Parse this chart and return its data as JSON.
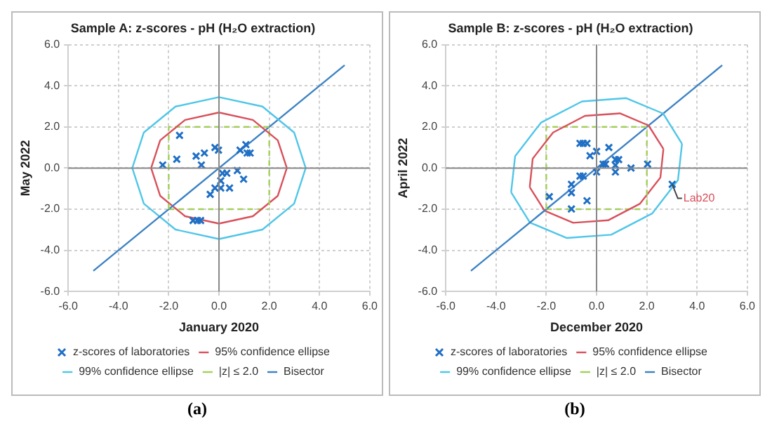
{
  "chart_data": [
    {
      "type": "scatter",
      "title": "Sample A: z-scores - pH (H₂O extraction)",
      "xlabel": "January 2020",
      "ylabel": "May 2022",
      "xlim": [
        -6,
        6
      ],
      "ylim": [
        -6,
        6
      ],
      "xticks": [
        {
          "value": -6,
          "label": "-6.0"
        },
        {
          "value": -4,
          "label": "-4.0"
        },
        {
          "value": -2,
          "label": "-2.0"
        },
        {
          "value": 0,
          "label": "0.0"
        },
        {
          "value": 2,
          "label": "2.0"
        },
        {
          "value": 4,
          "label": "4.0"
        },
        {
          "value": 6,
          "label": "6.0"
        }
      ],
      "yticks": [
        {
          "value": -6,
          "label": "-6.0"
        },
        {
          "value": -4,
          "label": "-4.0"
        },
        {
          "value": -2,
          "label": "-2.0"
        },
        {
          "value": 0,
          "label": "0.0"
        },
        {
          "value": 2,
          "label": "2.0"
        },
        {
          "value": 4,
          "label": "4.0"
        },
        {
          "value": 6,
          "label": "6.0"
        }
      ],
      "grid": true,
      "legend": "bottom",
      "annotations": [
        "(a)"
      ],
      "series": [
        {
          "name": "z-scores of laboratories",
          "type": "scatter",
          "marker": "cross",
          "color": "#1f6fc5",
          "x": [
            -2.24,
            -1.57,
            -1.68,
            -0.91,
            -0.58,
            -0.7,
            -0.16,
            -0.02,
            0.84,
            1.07,
            1.12,
            1.24,
            0.14,
            0.31,
            0.73,
            0.98,
            0.07,
            -0.16,
            0.07,
            0.42,
            -0.35,
            -1.03,
            -0.86,
            -0.73
          ],
          "values": [
            0.15,
            1.59,
            0.43,
            0.58,
            0.73,
            0.15,
            1.0,
            0.87,
            0.87,
            1.14,
            0.73,
            0.73,
            -0.25,
            -0.25,
            -0.12,
            -0.54,
            -0.62,
            -0.97,
            -0.97,
            -0.97,
            -1.28,
            -2.55,
            -2.55,
            -2.55
          ]
        },
        {
          "name": "95% confidence ellipse",
          "type": "line",
          "marker": "none",
          "color": "#d9505a",
          "x": [
            -2.7,
            -2.34,
            -1.35,
            0,
            1.35,
            2.34,
            2.7
          ],
          "values": [
            0,
            1.35,
            2.34,
            2.7,
            2.34,
            1.35,
            0
          ]
        },
        {
          "name": "99% confidence ellipse",
          "type": "line",
          "marker": "none",
          "color": "#4fc6e8",
          "x": [
            -3.45,
            -2.99,
            -1.73,
            0,
            1.73,
            2.99,
            3.45
          ],
          "values": [
            0,
            1.73,
            2.99,
            3.45,
            2.99,
            1.73,
            0
          ]
        },
        {
          "name": "|z| ≤ 2.0",
          "type": "line",
          "marker": "none",
          "line_style": "dashed",
          "color": "#a4d05a",
          "x": [
            -2,
            -2,
            2,
            2
          ],
          "values": [
            -2,
            2,
            2,
            -2
          ]
        },
        {
          "name": "Bisector",
          "type": "line",
          "marker": "none",
          "color": "#3b82c4",
          "x": [
            -5,
            5
          ],
          "values": [
            -5,
            5
          ]
        },
        {
          "type": "line",
          "marker": "none",
          "color": "#d9505a",
          "x": [
            -2.7,
            -2.34,
            -1.35,
            0,
            1.35,
            2.34,
            2.7
          ],
          "values": [
            0,
            -1.35,
            -2.34,
            -2.7,
            -2.34,
            -1.35,
            0
          ]
        },
        {
          "type": "line",
          "marker": "none",
          "color": "#4fc6e8",
          "x": [
            -3.45,
            -2.99,
            -1.73,
            0,
            1.73,
            2.99,
            3.45
          ],
          "values": [
            0,
            -1.73,
            -2.99,
            -3.45,
            -2.99,
            -1.73,
            0
          ]
        },
        {
          "type": "line",
          "marker": "none",
          "line_style": "dashed",
          "color": "#a4d05a",
          "x": [
            -2,
            2
          ],
          "values": [
            -2,
            -2
          ]
        }
      ]
    },
    {
      "type": "scatter",
      "title": "Sample B: z-scores - pH (H₂O extraction)",
      "xlabel": "December 2020",
      "ylabel": "April 2022",
      "xlim": [
        -6,
        6
      ],
      "ylim": [
        -6,
        6
      ],
      "xticks": [
        {
          "value": -6,
          "label": "-6.0"
        },
        {
          "value": -4,
          "label": "-4.0"
        },
        {
          "value": -2,
          "label": "-2.0"
        },
        {
          "value": 0,
          "label": "0.0"
        },
        {
          "value": 2,
          "label": "2.0"
        },
        {
          "value": 4,
          "label": "4.0"
        },
        {
          "value": 6,
          "label": "6.0"
        }
      ],
      "yticks": [
        {
          "value": -6,
          "label": "-6.0"
        },
        {
          "value": -4,
          "label": "-4.0"
        },
        {
          "value": -2,
          "label": "-2.0"
        },
        {
          "value": 0,
          "label": "0.0"
        },
        {
          "value": 2,
          "label": "2.0"
        },
        {
          "value": 4,
          "label": "4.0"
        },
        {
          "value": 6,
          "label": "6.0"
        }
      ],
      "grid": true,
      "legend": "bottom",
      "annotations": [
        "(b)",
        {
          "text": "Lab20",
          "x": 3.01,
          "y": -0.79
        }
      ],
      "series": [
        {
          "name": "z-scores of laboratories",
          "type": "scatter",
          "marker": "cross",
          "color": "#1f6fc5",
          "x": [
            -1.88,
            -1.0,
            -1.0,
            -1.0,
            -0.38,
            -0.66,
            -0.53,
            -0.38,
            -0.66,
            -0.53,
            -0.26,
            0,
            0.49,
            0,
            0.26,
            0.36,
            0.75,
            0.88,
            0.75,
            0.75,
            1.37,
            2.03,
            3.01
          ],
          "values": [
            -1.39,
            -0.79,
            -1.2,
            -1.99,
            -1.59,
            1.2,
            1.2,
            1.2,
            -0.39,
            -0.39,
            0.6,
            0.81,
            1.0,
            -0.19,
            0.19,
            0.19,
            0.41,
            0.41,
            0.14,
            -0.19,
            0,
            0.19,
            -0.79
          ]
        },
        {
          "name": "95% confidence ellipse",
          "type": "line",
          "marker": "none",
          "color": "#d9505a",
          "x": [
            -2.66,
            -2.54,
            -1.73,
            -0.46,
            0.93,
            2.07,
            2.66
          ],
          "values": [
            -0.93,
            0.46,
            1.73,
            2.54,
            2.66,
            2.07,
            0.93
          ]
        },
        {
          "name": "99% confidence ellipse",
          "type": "line",
          "marker": "none",
          "color": "#4fc6e8",
          "x": [
            -3.4,
            -3.24,
            -2.21,
            -0.58,
            1.18,
            2.65,
            3.4
          ],
          "values": [
            -1.18,
            0.58,
            2.21,
            3.24,
            3.4,
            2.65,
            1.18
          ]
        },
        {
          "name": "|z| ≤ 2.0",
          "type": "line",
          "marker": "none",
          "line_style": "dashed",
          "color": "#a4d05a",
          "x": [
            -2,
            -2,
            2,
            2
          ],
          "values": [
            -2,
            2,
            2,
            -2
          ]
        },
        {
          "name": "Bisector",
          "type": "line",
          "marker": "none",
          "color": "#3b82c4",
          "x": [
            -5,
            5
          ],
          "values": [
            -5,
            5
          ]
        },
        {
          "type": "line",
          "marker": "none",
          "color": "#d9505a",
          "x": [
            -2.66,
            -2.07,
            -0.93,
            0.46,
            1.73,
            2.54,
            2.66
          ],
          "values": [
            -0.93,
            -2.07,
            -2.66,
            -2.54,
            -1.73,
            -0.46,
            0.93
          ]
        },
        {
          "type": "line",
          "marker": "none",
          "color": "#4fc6e8",
          "x": [
            -3.4,
            -2.65,
            -1.18,
            0.58,
            2.21,
            3.24,
            3.4
          ],
          "values": [
            -1.18,
            -2.65,
            -3.4,
            -3.24,
            -2.21,
            -0.58,
            1.18
          ]
        },
        {
          "type": "line",
          "marker": "none",
          "line_style": "dashed",
          "color": "#a4d05a",
          "x": [
            -2,
            2
          ],
          "values": [
            -2,
            -2
          ]
        }
      ]
    }
  ]
}
